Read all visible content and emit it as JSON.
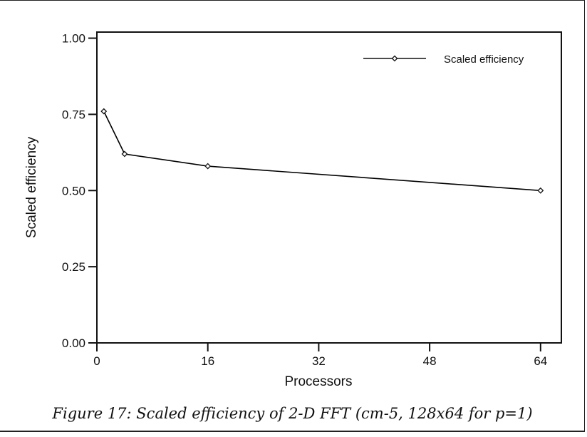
{
  "chart_data": {
    "type": "line",
    "xlabel": "Processors",
    "ylabel": "Scaled efficiency",
    "xlim": [
      0,
      67
    ],
    "ylim": [
      0,
      1.02
    ],
    "xticks": [
      0,
      16,
      32,
      48,
      64
    ],
    "yticks": [
      0,
      0.25,
      0.5,
      0.75,
      1.0
    ],
    "xtick_labels": [
      "0",
      "16",
      "32",
      "48",
      "64"
    ],
    "ytick_labels": [
      "0.00",
      "0.25",
      "0.50",
      "0.75",
      "1.00"
    ],
    "grid": false,
    "legend_position": "top-right",
    "series": [
      {
        "name": "Scaled efficiency",
        "marker": "diamond",
        "color": "#000000",
        "x": [
          1,
          4,
          16,
          64
        ],
        "y": [
          0.76,
          0.62,
          0.58,
          0.5
        ]
      }
    ]
  },
  "caption": "Figure 17: Scaled efficiency of 2-D FFT (cm-5, 128x64 for p=1)"
}
